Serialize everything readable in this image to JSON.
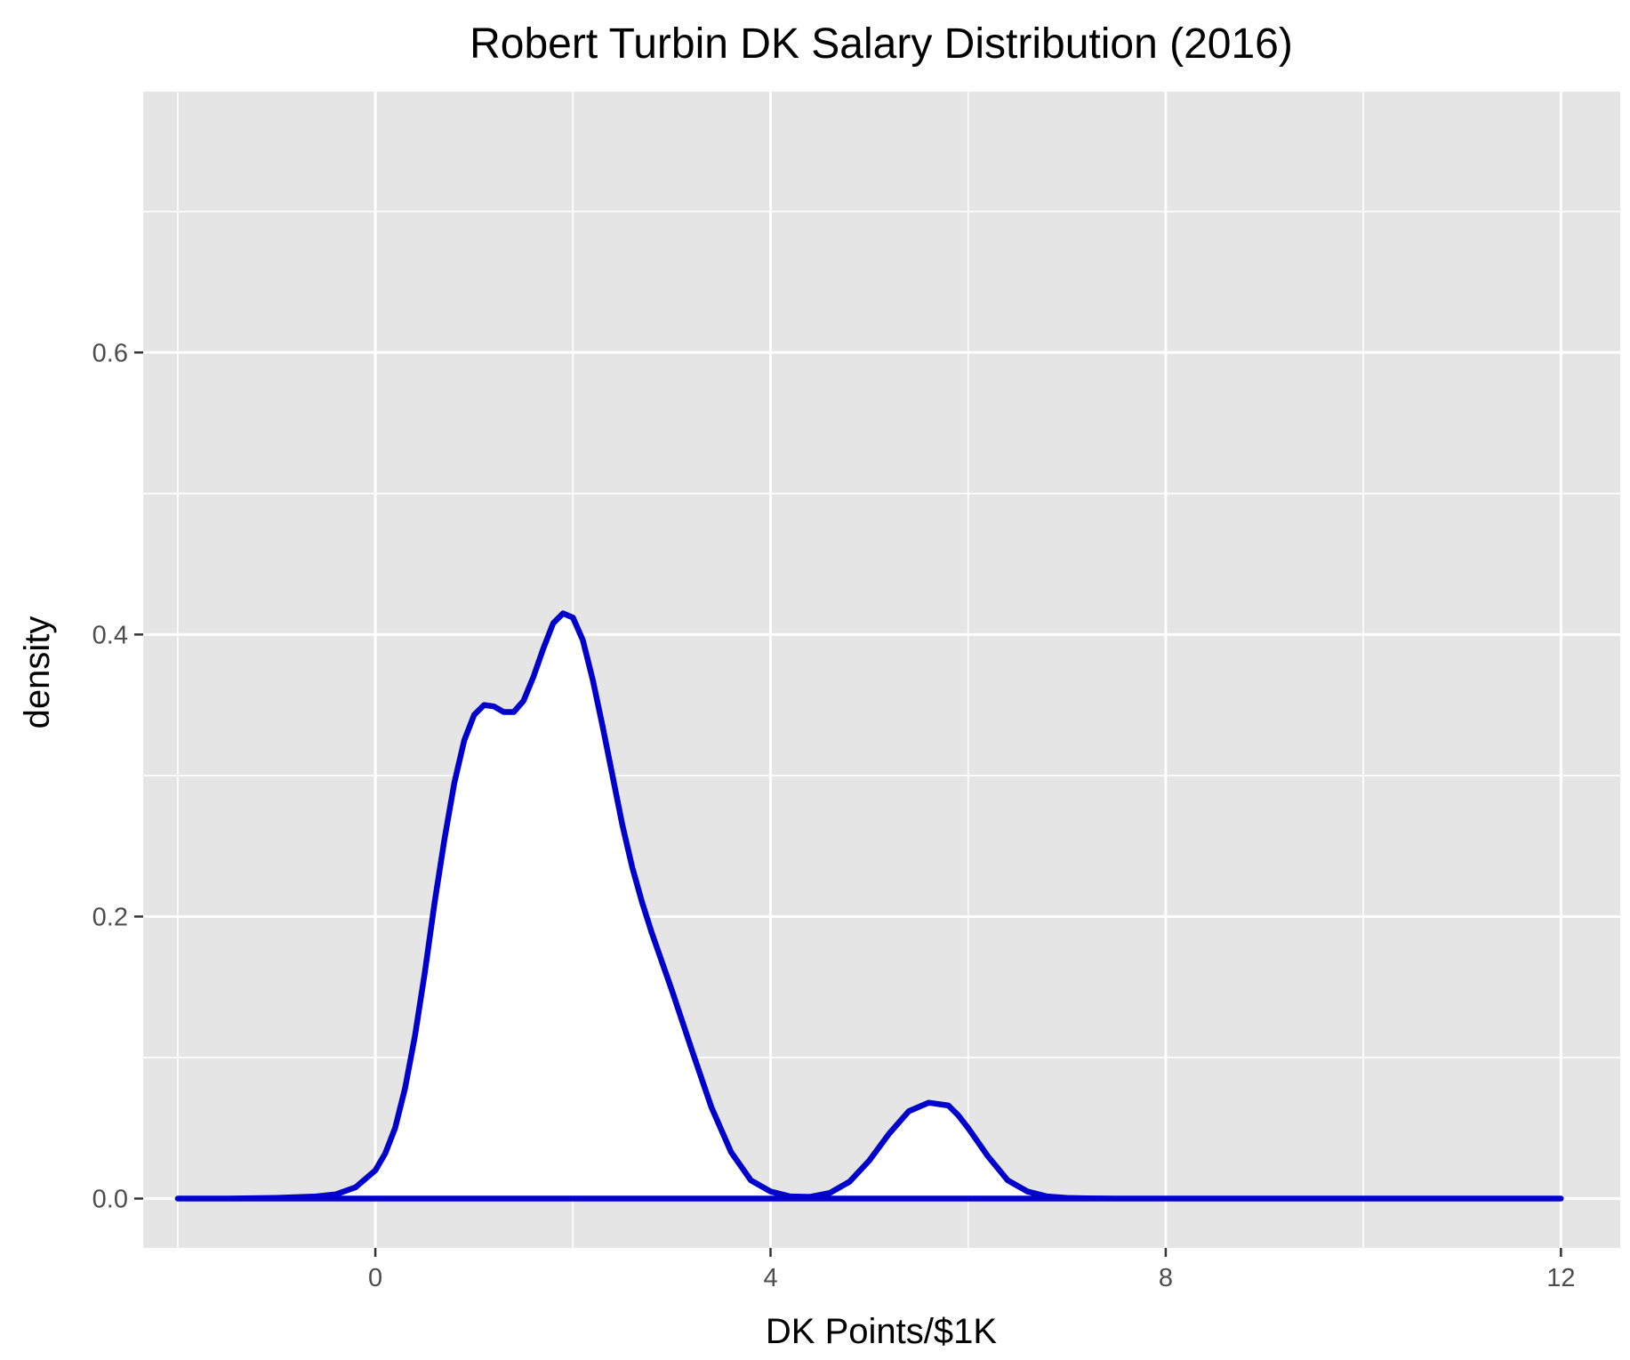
{
  "chart_data": {
    "type": "area",
    "title": "Robert Turbin DK Salary Distribution (2016)",
    "xlabel": "DK Points/$1K",
    "ylabel": "density",
    "xlim": [
      -2.35,
      12.6
    ],
    "ylim": [
      -0.035,
      0.785
    ],
    "x_ticks": [
      0,
      4,
      8,
      12
    ],
    "x_tick_labels": [
      "0",
      "4",
      "8",
      "12"
    ],
    "y_ticks": [
      0.0,
      0.2,
      0.4,
      0.6
    ],
    "y_tick_labels": [
      "0.0",
      "0.2",
      "0.4",
      "0.6"
    ],
    "x_minor_ticks": [
      -2,
      2,
      6,
      10
    ],
    "y_minor_ticks": [
      0.1,
      0.3,
      0.5,
      0.7
    ],
    "grid": true,
    "legend": "none",
    "series": [
      {
        "x": [
          -2,
          -1.5,
          -1,
          -0.6,
          -0.4,
          -0.2,
          0,
          0.1,
          0.2,
          0.3,
          0.4,
          0.5,
          0.6,
          0.7,
          0.8,
          0.9,
          1.0,
          1.1,
          1.2,
          1.3,
          1.4,
          1.5,
          1.6,
          1.7,
          1.8,
          1.9,
          2.0,
          2.1,
          2.2,
          2.3,
          2.4,
          2.5,
          2.6,
          2.7,
          2.8,
          2.9,
          3.0,
          3.2,
          3.4,
          3.6,
          3.8,
          4.0,
          4.2,
          4.4,
          4.6,
          4.8,
          5.0,
          5.2,
          5.4,
          5.6,
          5.8,
          5.9,
          6.0,
          6.2,
          6.4,
          6.6,
          6.8,
          7.0,
          7.2,
          7.5,
          8.0,
          9.0,
          10.0,
          11.0,
          12.0
        ],
        "y": [
          0.0,
          0.0,
          0.0005,
          0.0015,
          0.003,
          0.008,
          0.02,
          0.032,
          0.05,
          0.078,
          0.115,
          0.16,
          0.21,
          0.255,
          0.295,
          0.325,
          0.343,
          0.35,
          0.349,
          0.345,
          0.345,
          0.353,
          0.37,
          0.39,
          0.408,
          0.415,
          0.412,
          0.396,
          0.368,
          0.335,
          0.3,
          0.265,
          0.235,
          0.21,
          0.188,
          0.168,
          0.148,
          0.106,
          0.065,
          0.033,
          0.013,
          0.005,
          0.0015,
          0.0012,
          0.004,
          0.012,
          0.027,
          0.046,
          0.062,
          0.068,
          0.066,
          0.059,
          0.05,
          0.03,
          0.013,
          0.005,
          0.0015,
          0.0005,
          0.0002,
          0.0,
          0.0,
          0.0,
          0.0,
          0.0,
          0.0
        ],
        "fill": "#ffffff",
        "stroke": "#0000cd"
      }
    ],
    "colors": {
      "panel_background": "#e5e5e5",
      "grid": "#ffffff",
      "tick_text": "#4d4d4d",
      "tick_mark": "#333333",
      "line": "#0000cd",
      "area_fill": "#ffffff"
    }
  }
}
